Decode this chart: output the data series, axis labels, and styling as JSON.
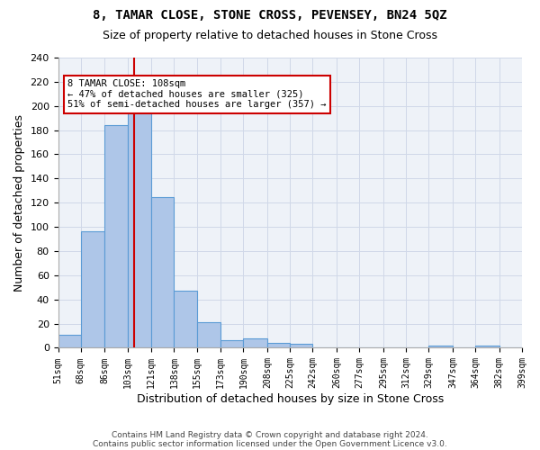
{
  "title": "8, TAMAR CLOSE, STONE CROSS, PEVENSEY, BN24 5QZ",
  "subtitle": "Size of property relative to detached houses in Stone Cross",
  "xlabel": "Distribution of detached houses by size in Stone Cross",
  "ylabel": "Number of detached properties",
  "footer_line1": "Contains HM Land Registry data © Crown copyright and database right 2024.",
  "footer_line2": "Contains public sector information licensed under the Open Government Licence v3.0.",
  "annotation_line1": "8 TAMAR CLOSE: 108sqm",
  "annotation_line2": "← 47% of detached houses are smaller (325)",
  "annotation_line3": "51% of semi-detached houses are larger (357) →",
  "property_size": 108,
  "bar_edges": [
    51,
    68,
    86,
    103,
    121,
    138,
    155,
    173,
    190,
    208,
    225,
    242,
    260,
    277,
    295,
    312,
    329,
    347,
    364,
    382,
    399
  ],
  "bar_values": [
    11,
    96,
    184,
    199,
    125,
    47,
    21,
    6,
    8,
    4,
    3,
    0,
    0,
    0,
    0,
    0,
    2,
    0,
    2,
    0
  ],
  "bar_color": "#aec6e8",
  "bar_edge_color": "#5b9bd5",
  "vline_color": "#cc0000",
  "vline_x": 108,
  "annotation_box_color": "#cc0000",
  "grid_color": "#d0d8e8",
  "bg_color": "#eef2f8",
  "ylim": [
    0,
    240
  ],
  "yticks": [
    0,
    20,
    40,
    60,
    80,
    100,
    120,
    140,
    160,
    180,
    200,
    220,
    240
  ]
}
